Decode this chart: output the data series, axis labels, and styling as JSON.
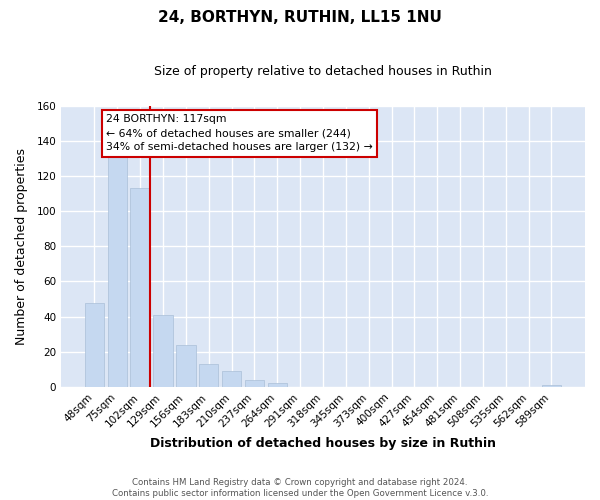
{
  "title": "24, BORTHYN, RUTHIN, LL15 1NU",
  "subtitle": "Size of property relative to detached houses in Ruthin",
  "xlabel": "Distribution of detached houses by size in Ruthin",
  "ylabel": "Number of detached properties",
  "bar_labels": [
    "48sqm",
    "75sqm",
    "102sqm",
    "129sqm",
    "156sqm",
    "183sqm",
    "210sqm",
    "237sqm",
    "264sqm",
    "291sqm",
    "318sqm",
    "345sqm",
    "373sqm",
    "400sqm",
    "427sqm",
    "454sqm",
    "481sqm",
    "508sqm",
    "535sqm",
    "562sqm",
    "589sqm"
  ],
  "bar_values": [
    48,
    132,
    113,
    41,
    24,
    13,
    9,
    4,
    2,
    0,
    0,
    0,
    0,
    0,
    0,
    0,
    0,
    0,
    0,
    0,
    1
  ],
  "bar_color": "#c5d8f0",
  "bar_edge_color": "#aabfd8",
  "ylim": [
    0,
    160
  ],
  "yticks": [
    0,
    20,
    40,
    60,
    80,
    100,
    120,
    140,
    160
  ],
  "vline_color": "#cc0000",
  "annotation_title": "24 BORTHYN: 117sqm",
  "annotation_line1": "← 64% of detached houses are smaller (244)",
  "annotation_line2": "34% of semi-detached houses are larger (132) →",
  "annotation_box_facecolor": "#ffffff",
  "annotation_box_edgecolor": "#cc0000",
  "footer1": "Contains HM Land Registry data © Crown copyright and database right 2024.",
  "footer2": "Contains public sector information licensed under the Open Government Licence v.3.0.",
  "fig_background_color": "#ffffff",
  "plot_bg_color": "#dce6f5",
  "grid_color": "#ffffff",
  "title_fontsize": 11,
  "subtitle_fontsize": 9,
  "axis_label_fontsize": 9,
  "tick_fontsize": 7.5
}
